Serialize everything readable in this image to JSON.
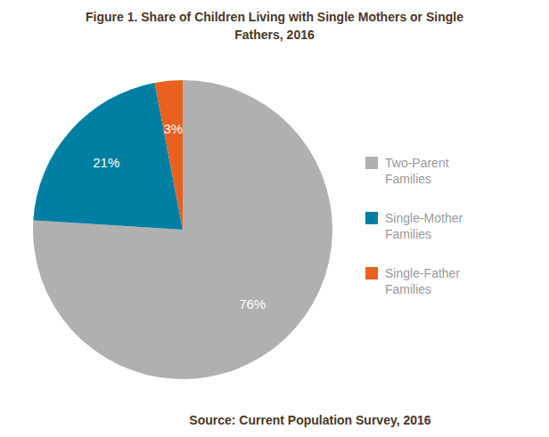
{
  "chart_data": {
    "type": "pie",
    "title": "Figure 1. Share of Children Living with Single Mothers or Single\nFathers, 2016",
    "categories": [
      "Two-Parent\nFamilies",
      "Single-Mother\nFamilies",
      "Single-Father\nFamilies"
    ],
    "values": [
      76,
      21,
      3
    ],
    "value_labels": [
      "76%",
      "21%",
      "3%"
    ],
    "colors": [
      "#b0b0b0",
      "#007fa3",
      "#e86120"
    ],
    "data_labels": true,
    "legend": "right",
    "annotations": [
      "Source: Current Population Survey, 2016"
    ]
  }
}
